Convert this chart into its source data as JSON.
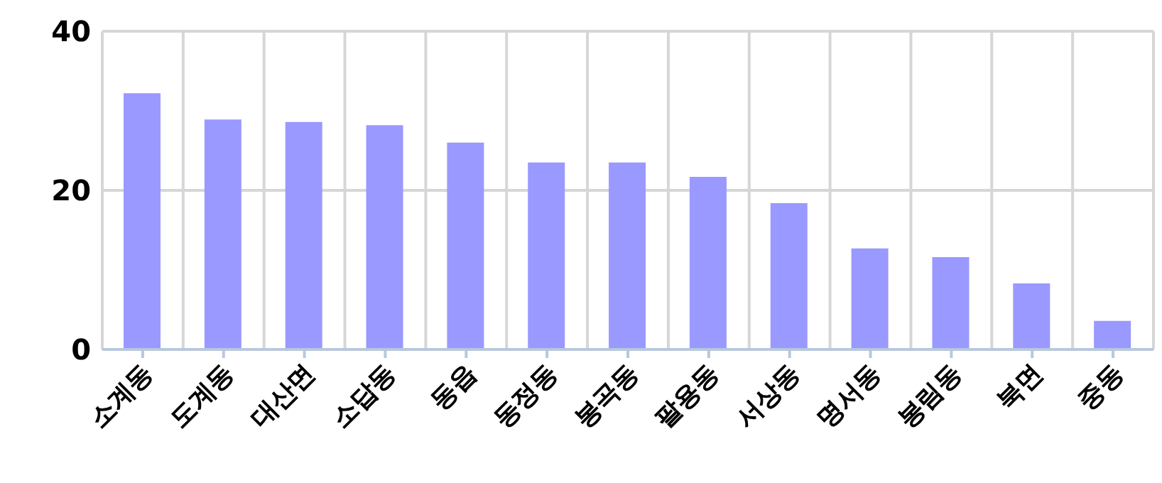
{
  "chart_data": {
    "type": "bar",
    "categories": [
      "소계동",
      "도계동",
      "대산면",
      "소답동",
      "동읍",
      "동정동",
      "봉곡동",
      "팔용동",
      "서상동",
      "명서동",
      "봉림동",
      "북면",
      "중동"
    ],
    "values": [
      32.2,
      28.9,
      28.6,
      28.2,
      26.0,
      23.5,
      23.5,
      21.7,
      18.4,
      12.7,
      11.6,
      8.3,
      3.6
    ],
    "color": "#9999ff",
    "ylim": [
      0,
      40
    ],
    "yticks": [
      0,
      20,
      40
    ],
    "grid": true
  }
}
